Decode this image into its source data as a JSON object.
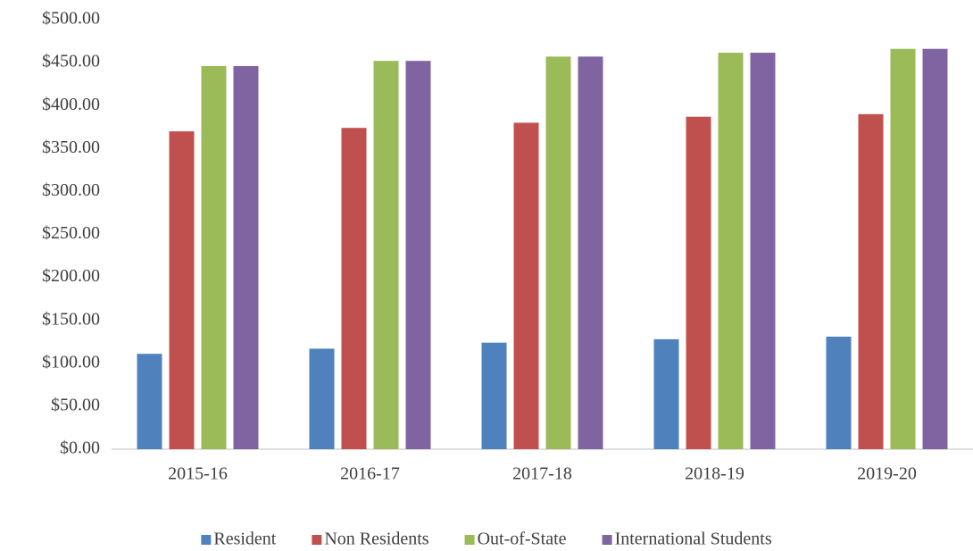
{
  "chart_data": {
    "type": "bar",
    "categories": [
      "2015-16",
      "2016-17",
      "2017-18",
      "2018-19",
      "2019-20"
    ],
    "series": [
      {
        "name": "Resident",
        "color": "#4f81bd",
        "values": [
          111,
          117,
          124,
          128,
          131
        ]
      },
      {
        "name": "Non Residents",
        "color": "#c0504d",
        "values": [
          370,
          374,
          380,
          387,
          390
        ]
      },
      {
        "name": "Out-of-State",
        "color": "#9bbb59",
        "values": [
          446,
          452,
          457,
          461.5,
          466
        ]
      },
      {
        "name": "International Students",
        "color": "#8064a2",
        "values": [
          446,
          452,
          457,
          461.5,
          466
        ]
      }
    ],
    "ylim": [
      0,
      500
    ],
    "yticks": [
      {
        "value": 0,
        "label": "$0.00"
      },
      {
        "value": 50,
        "label": "$50.00"
      },
      {
        "value": 100,
        "label": "$100.00"
      },
      {
        "value": 150,
        "label": "$150.00"
      },
      {
        "value": 200,
        "label": "$200.00"
      },
      {
        "value": 250,
        "label": "$250.00"
      },
      {
        "value": 300,
        "label": "$300.00"
      },
      {
        "value": 350,
        "label": "$350.00"
      },
      {
        "value": 400,
        "label": "$400.00"
      },
      {
        "value": 450,
        "label": "$450.00"
      },
      {
        "value": 500,
        "label": "$500.00"
      }
    ],
    "grid": false,
    "legend": "bottom"
  }
}
